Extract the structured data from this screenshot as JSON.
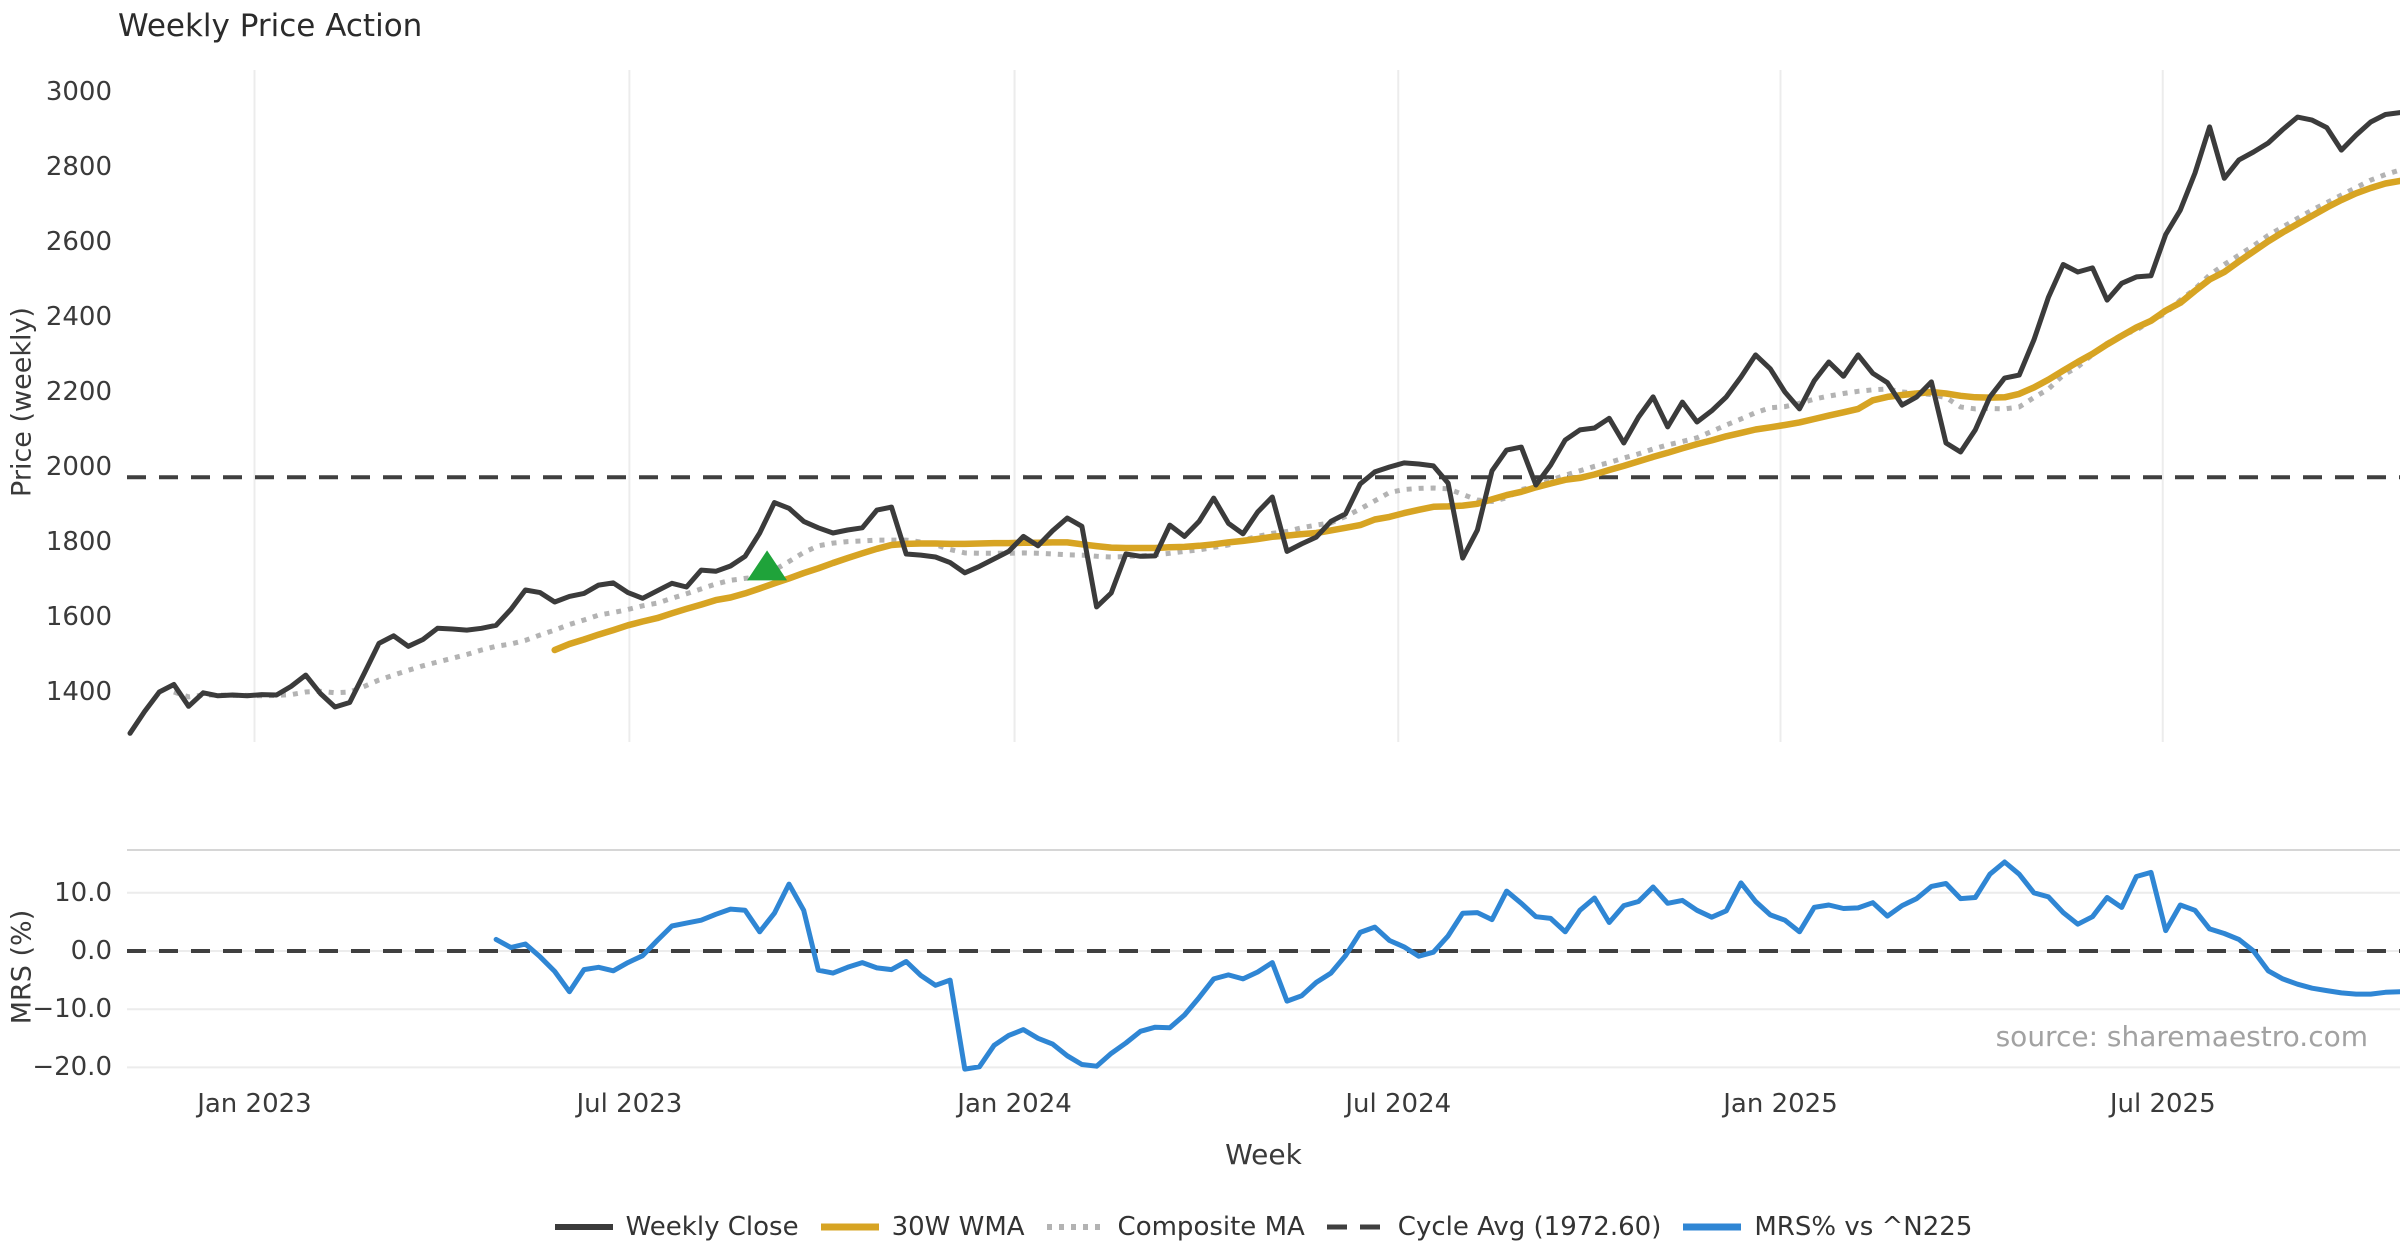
{
  "title": "Weekly Price Action",
  "source_text": "source: sharemaestro.com",
  "colors": {
    "weekly_close": "#3b3b3b",
    "wma_30w": "#d7a423",
    "composite_ma": "#b3b3b3",
    "cycle_avg": "#3f3f3f",
    "mrs": "#2f86d4",
    "signal_marker": "#1fa33a",
    "grid": "#ececec",
    "spine": "#d6d6d6"
  },
  "main_chart": {
    "ylabel": "Price (weekly)",
    "yticks": [
      3000,
      2800,
      2600,
      2400,
      2200,
      2000,
      1800,
      1600,
      1400
    ]
  },
  "mrs_chart": {
    "ylabel": "MRS (%)",
    "yticks": [
      {
        "label": "10.0",
        "value": 10
      },
      {
        "label": "0.0",
        "value": 0
      },
      {
        "label": "−10.0",
        "value": -10
      },
      {
        "label": "−20.0",
        "value": -20
      }
    ]
  },
  "x_axis": {
    "label": "Week",
    "ticks": [
      {
        "label": "Jan 2023",
        "week_index": 8.5
      },
      {
        "label": "Jul 2023",
        "week_index": 34.1
      },
      {
        "label": "Jan 2024",
        "week_index": 60.4
      },
      {
        "label": "Jul 2024",
        "week_index": 86.6
      },
      {
        "label": "Jan 2025",
        "week_index": 112.7
      },
      {
        "label": "Jul 2025",
        "week_index": 138.8
      }
    ]
  },
  "legend": [
    {
      "label": "Weekly Close",
      "style": "solid-dark"
    },
    {
      "label": "30W WMA",
      "style": "solid-gold"
    },
    {
      "label": "Composite MA",
      "style": "dotted-gray"
    },
    {
      "label": "Cycle Avg (1972.60)",
      "style": "dashed-dark"
    },
    {
      "label": "MRS% vs ^N225",
      "style": "solid-blue"
    }
  ],
  "chart_data": {
    "type": "line",
    "title": "Weekly Price Action",
    "x_unit": "week_index",
    "total_weeks": 156,
    "x_ticks": [
      {
        "label": "Jan 2023",
        "index": 8.5
      },
      {
        "label": "Jul 2023",
        "index": 34.1
      },
      {
        "label": "Jan 2024",
        "index": 60.4
      },
      {
        "label": "Jul 2024",
        "index": 86.6
      },
      {
        "label": "Jan 2025",
        "index": 112.7
      },
      {
        "label": "Jul 2025",
        "index": 138.8
      }
    ],
    "panels": [
      {
        "name": "price",
        "ylabel": "Price (weekly)",
        "ylim": [
          1260,
          3100
        ],
        "grid": "vertical-only",
        "cycle_avg_line": 1972.6,
        "signal_marker": {
          "shape": "triangle-up",
          "week_index": 43.5,
          "price": 1735
        },
        "series": [
          {
            "name": "Weekly Close",
            "style": "solid",
            "start_index": 0,
            "values": [
              1290,
              1348,
              1400,
              1420,
              1362,
              1398,
              1390,
              1392,
              1390,
              1393,
              1392,
              1415,
              1445,
              1396,
              1360,
              1372,
              1450,
              1530,
              1550,
              1522,
              1540,
              1570,
              1568,
              1565,
              1570,
              1578,
              1620,
              1672,
              1665,
              1640,
              1655,
              1663,
              1685,
              1691,
              1665,
              1650,
              1670,
              1690,
              1680,
              1725,
              1722,
              1736,
              1762,
              1824,
              1905,
              1890,
              1855,
              1838,
              1824,
              1832,
              1838,
              1885,
              1893,
              1768,
              1765,
              1760,
              1745,
              1718,
              1735,
              1755,
              1775,
              1815,
              1790,
              1830,
              1864,
              1842,
              1627,
              1664,
              1768,
              1762,
              1763,
              1845,
              1815,
              1855,
              1917,
              1850,
              1822,
              1880,
              1920,
              1775,
              1795,
              1813,
              1855,
              1875,
              1955,
              1987,
              2000,
              2011,
              2008,
              2003,
              1957,
              1757,
              1832,
              1990,
              2045,
              2053,
              1952,
              2005,
              2072,
              2099,
              2104,
              2130,
              2064,
              2133,
              2187,
              2107,
              2173,
              2120,
              2150,
              2187,
              2240,
              2299,
              2262,
              2200,
              2155,
              2230,
              2280,
              2242,
              2299,
              2250,
              2225,
              2165,
              2187,
              2227,
              2064,
              2040,
              2099,
              2187,
              2237,
              2245,
              2339,
              2453,
              2540,
              2520,
              2531,
              2445,
              2490,
              2507,
              2510,
              2620,
              2685,
              2784,
              2907,
              2770,
              2819,
              2840,
              2864,
              2900,
              2933,
              2925,
              2905,
              2845,
              2885,
              2920,
              2940,
              2945
            ]
          },
          {
            "name": "30W WMA",
            "style": "solid",
            "start_index": 29,
            "values": [
              1512,
              1528,
              1540,
              1553,
              1565,
              1578,
              1588,
              1597,
              1610,
              1622,
              1633,
              1645,
              1652,
              1663,
              1676,
              1690,
              1703,
              1717,
              1730,
              1744,
              1757,
              1770,
              1782,
              1792,
              1795,
              1796,
              1796,
              1795,
              1795,
              1796,
              1797,
              1797,
              1798,
              1798,
              1799,
              1799,
              1794,
              1789,
              1785,
              1784,
              1784,
              1784,
              1786,
              1787,
              1790,
              1794,
              1799,
              1803,
              1808,
              1814,
              1817,
              1821,
              1824,
              1831,
              1838,
              1845,
              1860,
              1867,
              1877,
              1886,
              1894,
              1895,
              1897,
              1902,
              1914,
              1925,
              1934,
              1946,
              1956,
              1966,
              1971,
              1980,
              1992,
              2003,
              2015,
              2027,
              2038,
              2050,
              2061,
              2071,
              2082,
              2091,
              2100,
              2106,
              2112,
              2119,
              2128,
              2137,
              2146,
              2155,
              2178,
              2187,
              2192,
              2196,
              2200,
              2196,
              2190,
              2186,
              2185,
              2186,
              2195,
              2212,
              2233,
              2257,
              2280,
              2302,
              2327,
              2350,
              2372,
              2390,
              2417,
              2438,
              2470,
              2500,
              2520,
              2548,
              2575,
              2602,
              2626,
              2648,
              2670,
              2692,
              2712,
              2730,
              2744,
              2756,
              2763
            ]
          },
          {
            "name": "Composite MA",
            "style": "dotted",
            "start_index": 3,
            "values": [
              1400,
              1387,
              1392,
              1392,
              1391,
              1391,
              1390,
              1391,
              1393,
              1400,
              1402,
              1398,
              1400,
              1415,
              1432,
              1445,
              1458,
              1470,
              1480,
              1490,
              1500,
              1512,
              1522,
              1528,
              1538,
              1552,
              1565,
              1580,
              1592,
              1605,
              1612,
              1620,
              1630,
              1637,
              1650,
              1662,
              1675,
              1688,
              1698,
              1703,
              1707,
              1725,
              1748,
              1772,
              1790,
              1797,
              1801,
              1803,
              1805,
              1805,
              1805,
              1800,
              1793,
              1780,
              1771,
              1770,
              1770,
              1770,
              1771,
              1770,
              1768,
              1766,
              1765,
              1762,
              1760,
              1761,
              1763,
              1766,
              1770,
              1775,
              1779,
              1786,
              1792,
              1805,
              1815,
              1823,
              1828,
              1838,
              1845,
              1851,
              1868,
              1888,
              1910,
              1932,
              1940,
              1943,
              1944,
              1942,
              1927,
              1912,
              1908,
              1918,
              1940,
              1948,
              1965,
              1978,
              1990,
              2002,
              2012,
              2024,
              2035,
              2048,
              2059,
              2068,
              2078,
              2095,
              2112,
              2128,
              2145,
              2158,
              2161,
              2170,
              2181,
              2189,
              2196,
              2202,
              2206,
              2208,
              2200,
              2197,
              2193,
              2185,
              2160,
              2155,
              2156,
              2155,
              2160,
              2185,
              2208,
              2245,
              2267,
              2300,
              2330,
              2352,
              2365,
              2390,
              2410,
              2445,
              2475,
              2512,
              2540,
              2565,
              2590,
              2618,
              2640,
              2663,
              2685,
              2705,
              2725,
              2745,
              2765,
              2780,
              2792
            ]
          }
        ]
      },
      {
        "name": "mrs",
        "ylabel": "MRS (%)",
        "ylim": [
          -23,
          17.4
        ],
        "zero_line": 0,
        "series": [
          {
            "name": "MRS% vs ^N225",
            "style": "solid",
            "start_index": 25,
            "values": [
              2.0,
              0.6,
              1.2,
              -1.0,
              -3.5,
              -7.0,
              -3.2,
              -2.8,
              -3.4,
              -2.0,
              -0.8,
              1.8,
              4.3,
              4.8,
              5.3,
              6.3,
              7.2,
              7.0,
              3.3,
              6.5,
              11.5,
              7.0,
              -3.3,
              -3.8,
              -2.8,
              -2.0,
              -2.9,
              -3.2,
              -1.8,
              -4.2,
              -5.9,
              -5.0,
              -20.3,
              -19.9,
              -16.2,
              -14.5,
              -13.5,
              -15.0,
              -16.0,
              -18.0,
              -19.5,
              -19.8,
              -17.6,
              -15.8,
              -13.8,
              -13.1,
              -13.2,
              -11.0,
              -8.0,
              -4.8,
              -4.1,
              -4.8,
              -3.6,
              -2.0,
              -8.6,
              -7.7,
              -5.4,
              -3.8,
              -0.8,
              3.2,
              4.1,
              1.8,
              0.7,
              -0.9,
              -0.2,
              2.6,
              6.5,
              6.6,
              5.4,
              10.3,
              8.2,
              5.9,
              5.6,
              3.3,
              7.0,
              9.1,
              4.9,
              7.8,
              8.5,
              11.0,
              8.2,
              8.7,
              7.0,
              5.8,
              6.9,
              11.7,
              8.5,
              6.2,
              5.3,
              3.3,
              7.5,
              7.9,
              7.3,
              7.4,
              8.3,
              6.0,
              7.8,
              9.0,
              11.1,
              11.6,
              9.0,
              9.2,
              13.2,
              15.3,
              13.2,
              10.0,
              9.3,
              6.6,
              4.6,
              5.9,
              9.2,
              7.5,
              12.8,
              13.5,
              3.5,
              7.9,
              7.0,
              3.8,
              3.0,
              2.0,
              0.0,
              -3.4,
              -4.8,
              -5.7,
              -6.4,
              -6.8,
              -7.2,
              -7.4,
              -7.4,
              -7.1,
              -7.0
            ]
          }
        ]
      }
    ]
  }
}
